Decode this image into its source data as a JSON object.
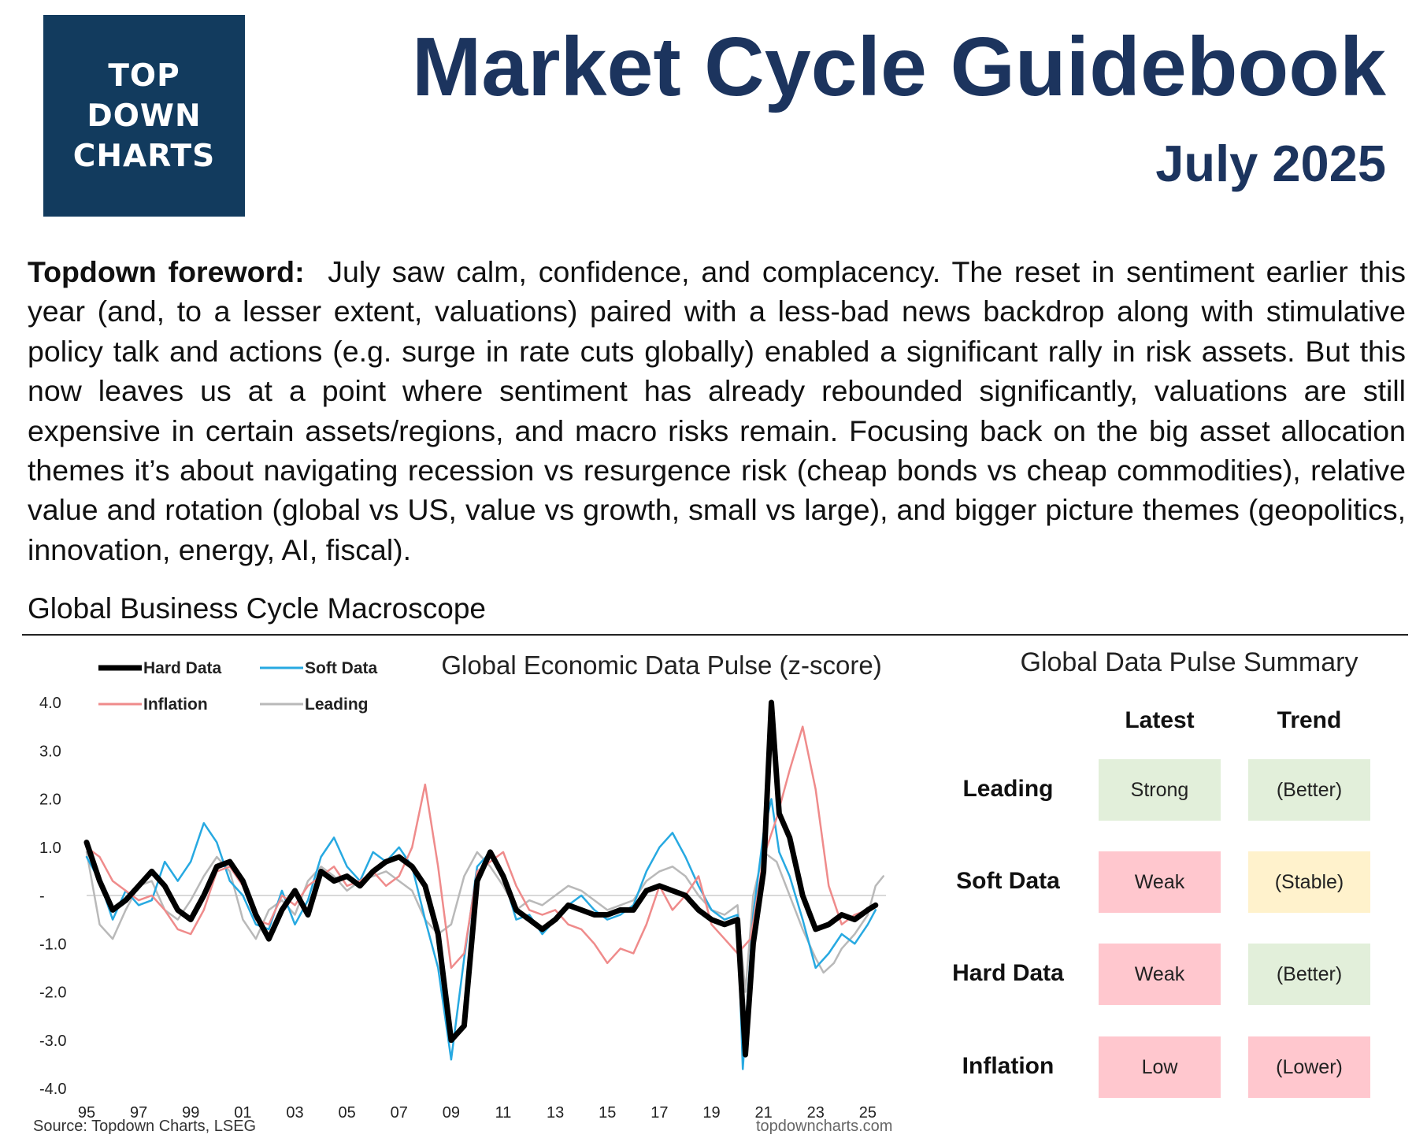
{
  "colors": {
    "navy": "#1c345e",
    "logo_bg": "#123b5e",
    "good": "#e2efda",
    "bad": "#ffc7ce",
    "neutral": "#fff2cc"
  },
  "header": {
    "logo_lines": [
      "TOP",
      "DOWN",
      "CHARTS"
    ],
    "title": "Market Cycle Guidebook",
    "date": "July 2025"
  },
  "foreword": {
    "lead": "Topdown foreword:",
    "body": "July saw calm, confidence, and complacency.  The reset in sentiment earlier this year (and, to a lesser extent, valuations) paired with a less-bad news backdrop along with stimulative policy talk and actions (e.g. surge in rate cuts globally) enabled a significant rally in risk assets. But this now leaves us at a point where sentiment has already rebounded significantly, valuations are still expensive in certain assets/regions, and macro risks remain.  Focusing back on the big asset allocation themes it’s about navigating recession vs resurgence risk (cheap bonds vs cheap commodities), relative value and rotation (global vs US, value vs growth, small vs large), and bigger picture themes (geopolitics, innovation, energy, AI, fiscal)."
  },
  "section": {
    "title": "Global Business Cycle Macroscope"
  },
  "chart_data": {
    "type": "line",
    "title": "Global Economic Data Pulse (z-score)",
    "xlabel": "",
    "ylabel": "",
    "ylim": [
      -4,
      4
    ],
    "xlim": [
      1995,
      2025.7
    ],
    "yticks": [
      {
        "v": 4,
        "label": "4.0"
      },
      {
        "v": 3,
        "label": "3.0"
      },
      {
        "v": 2,
        "label": "2.0"
      },
      {
        "v": 1,
        "label": "1.0"
      },
      {
        "v": 0,
        "label": "-"
      },
      {
        "v": -1,
        "label": "-1.0"
      },
      {
        "v": -2,
        "label": "-2.0"
      },
      {
        "v": -3,
        "label": "-3.0"
      },
      {
        "v": -4,
        "label": "-4.0"
      }
    ],
    "xticks": [
      {
        "v": 1995,
        "label": "95"
      },
      {
        "v": 1997,
        "label": "97"
      },
      {
        "v": 1999,
        "label": "99"
      },
      {
        "v": 2001,
        "label": "01"
      },
      {
        "v": 2003,
        "label": "03"
      },
      {
        "v": 2005,
        "label": "05"
      },
      {
        "v": 2007,
        "label": "07"
      },
      {
        "v": 2009,
        "label": "09"
      },
      {
        "v": 2011,
        "label": "11"
      },
      {
        "v": 2013,
        "label": "13"
      },
      {
        "v": 2015,
        "label": "15"
      },
      {
        "v": 2017,
        "label": "17"
      },
      {
        "v": 2019,
        "label": "19"
      },
      {
        "v": 2021,
        "label": "21"
      },
      {
        "v": 2023,
        "label": "23"
      },
      {
        "v": 2025,
        "label": "25"
      }
    ],
    "legend_position": "top-left",
    "series": [
      {
        "name": "Leading",
        "color": "#b9b9b9",
        "points": [
          [
            1995,
            0.9
          ],
          [
            1995.5,
            -0.6
          ],
          [
            1996,
            -0.9
          ],
          [
            1996.5,
            -0.3
          ],
          [
            1997,
            0.2
          ],
          [
            1997.5,
            0.3
          ],
          [
            1998,
            -0.3
          ],
          [
            1998.5,
            -0.5
          ],
          [
            1999,
            -0.1
          ],
          [
            1999.5,
            0.4
          ],
          [
            2000,
            0.8
          ],
          [
            2000.5,
            0.5
          ],
          [
            2001,
            -0.5
          ],
          [
            2001.5,
            -0.9
          ],
          [
            2002,
            -0.3
          ],
          [
            2002.5,
            -0.1
          ],
          [
            2003,
            -0.4
          ],
          [
            2003.5,
            0.3
          ],
          [
            2004,
            0.6
          ],
          [
            2004.5,
            0.4
          ],
          [
            2005,
            0.1
          ],
          [
            2005.5,
            0.3
          ],
          [
            2006,
            0.4
          ],
          [
            2006.5,
            0.5
          ],
          [
            2007,
            0.3
          ],
          [
            2007.5,
            0.1
          ],
          [
            2008,
            -0.5
          ],
          [
            2008.5,
            -0.8
          ],
          [
            2009,
            -0.6
          ],
          [
            2009.5,
            0.4
          ],
          [
            2010,
            0.9
          ],
          [
            2010.5,
            0.6
          ],
          [
            2011,
            0.2
          ],
          [
            2011.5,
            -0.3
          ],
          [
            2012,
            -0.1
          ],
          [
            2012.5,
            -0.2
          ],
          [
            2013,
            0.0
          ],
          [
            2013.5,
            0.2
          ],
          [
            2014,
            0.1
          ],
          [
            2014.5,
            -0.1
          ],
          [
            2015,
            -0.3
          ],
          [
            2015.5,
            -0.2
          ],
          [
            2016,
            -0.1
          ],
          [
            2016.5,
            0.3
          ],
          [
            2017,
            0.5
          ],
          [
            2017.5,
            0.6
          ],
          [
            2018,
            0.4
          ],
          [
            2018.5,
            0.0
          ],
          [
            2019,
            -0.3
          ],
          [
            2019.5,
            -0.4
          ],
          [
            2020,
            -0.2
          ],
          [
            2020.3,
            -2.0
          ],
          [
            2020.6,
            0.0
          ],
          [
            2021,
            0.9
          ],
          [
            2021.5,
            0.7
          ],
          [
            2022,
            0.0
          ],
          [
            2022.5,
            -0.7
          ],
          [
            2023,
            -1.3
          ],
          [
            2023.3,
            -1.6
          ],
          [
            2023.7,
            -1.4
          ],
          [
            2024,
            -1.1
          ],
          [
            2024.5,
            -0.8
          ],
          [
            2025,
            -0.4
          ],
          [
            2025.3,
            0.2
          ],
          [
            2025.6,
            0.4
          ]
        ]
      },
      {
        "name": "Soft Data",
        "color": "#27a9e1",
        "points": [
          [
            1995,
            0.8
          ],
          [
            1995.5,
            0.3
          ],
          [
            1996,
            -0.5
          ],
          [
            1996.5,
            0.1
          ],
          [
            1997,
            -0.2
          ],
          [
            1997.5,
            -0.1
          ],
          [
            1998,
            0.7
          ],
          [
            1998.5,
            0.3
          ],
          [
            1999,
            0.7
          ],
          [
            1999.5,
            1.5
          ],
          [
            2000,
            1.1
          ],
          [
            2000.5,
            0.3
          ],
          [
            2001,
            0.0
          ],
          [
            2001.5,
            -0.6
          ],
          [
            2002,
            -0.7
          ],
          [
            2002.5,
            0.1
          ],
          [
            2003,
            -0.6
          ],
          [
            2003.5,
            -0.1
          ],
          [
            2004,
            0.8
          ],
          [
            2004.5,
            1.2
          ],
          [
            2005,
            0.6
          ],
          [
            2005.5,
            0.3
          ],
          [
            2006,
            0.9
          ],
          [
            2006.5,
            0.7
          ],
          [
            2007,
            1.0
          ],
          [
            2007.5,
            0.6
          ],
          [
            2008,
            -0.5
          ],
          [
            2008.5,
            -1.5
          ],
          [
            2009,
            -3.4
          ],
          [
            2009.5,
            -1.3
          ],
          [
            2010,
            0.6
          ],
          [
            2010.5,
            0.9
          ],
          [
            2011,
            0.4
          ],
          [
            2011.5,
            -0.5
          ],
          [
            2012,
            -0.4
          ],
          [
            2012.5,
            -0.8
          ],
          [
            2013,
            -0.5
          ],
          [
            2013.5,
            -0.2
          ],
          [
            2014,
            0.0
          ],
          [
            2014.5,
            -0.3
          ],
          [
            2015,
            -0.5
          ],
          [
            2015.5,
            -0.4
          ],
          [
            2016,
            -0.2
          ],
          [
            2016.5,
            0.5
          ],
          [
            2017,
            1.0
          ],
          [
            2017.5,
            1.3
          ],
          [
            2018,
            0.8
          ],
          [
            2018.5,
            0.2
          ],
          [
            2019,
            -0.3
          ],
          [
            2019.5,
            -0.5
          ],
          [
            2020,
            -0.4
          ],
          [
            2020.2,
            -3.6
          ],
          [
            2020.6,
            -0.4
          ],
          [
            2021,
            1.3
          ],
          [
            2021.3,
            2.0
          ],
          [
            2021.6,
            0.9
          ],
          [
            2022,
            0.4
          ],
          [
            2022.5,
            -0.5
          ],
          [
            2023,
            -1.5
          ],
          [
            2023.5,
            -1.2
          ],
          [
            2024,
            -0.8
          ],
          [
            2024.5,
            -1.0
          ],
          [
            2025,
            -0.6
          ],
          [
            2025.3,
            -0.3
          ]
        ]
      },
      {
        "name": "Inflation",
        "color": "#ef8b8b",
        "points": [
          [
            1995,
            1.0
          ],
          [
            1995.5,
            0.8
          ],
          [
            1996,
            0.3
          ],
          [
            1996.5,
            0.1
          ],
          [
            1997,
            -0.1
          ],
          [
            1997.5,
            0.0
          ],
          [
            1998,
            -0.3
          ],
          [
            1998.5,
            -0.7
          ],
          [
            1999,
            -0.8
          ],
          [
            1999.5,
            -0.3
          ],
          [
            2000,
            0.5
          ],
          [
            2000.5,
            0.6
          ],
          [
            2001,
            0.2
          ],
          [
            2001.5,
            -0.5
          ],
          [
            2002,
            -0.6
          ],
          [
            2002.5,
            0.0
          ],
          [
            2003,
            -0.2
          ],
          [
            2003.5,
            0.2
          ],
          [
            2004,
            0.4
          ],
          [
            2004.5,
            0.6
          ],
          [
            2005,
            0.2
          ],
          [
            2005.5,
            0.3
          ],
          [
            2006,
            0.5
          ],
          [
            2006.5,
            0.2
          ],
          [
            2007,
            0.4
          ],
          [
            2007.5,
            1.0
          ],
          [
            2008,
            2.3
          ],
          [
            2008.5,
            0.6
          ],
          [
            2009,
            -1.5
          ],
          [
            2009.5,
            -1.2
          ],
          [
            2010,
            0.5
          ],
          [
            2010.5,
            0.7
          ],
          [
            2011,
            0.9
          ],
          [
            2011.5,
            0.2
          ],
          [
            2012,
            -0.3
          ],
          [
            2012.5,
            -0.4
          ],
          [
            2013,
            -0.3
          ],
          [
            2013.5,
            -0.6
          ],
          [
            2014,
            -0.7
          ],
          [
            2014.5,
            -1.0
          ],
          [
            2015,
            -1.4
          ],
          [
            2015.5,
            -1.1
          ],
          [
            2016,
            -1.2
          ],
          [
            2016.5,
            -0.6
          ],
          [
            2017,
            0.2
          ],
          [
            2017.5,
            -0.3
          ],
          [
            2018,
            0.0
          ],
          [
            2018.5,
            0.4
          ],
          [
            2019,
            -0.6
          ],
          [
            2019.5,
            -0.9
          ],
          [
            2020,
            -1.2
          ],
          [
            2020.5,
            -0.9
          ],
          [
            2021,
            0.8
          ],
          [
            2021.5,
            1.6
          ],
          [
            2022,
            2.6
          ],
          [
            2022.5,
            3.5
          ],
          [
            2023,
            2.2
          ],
          [
            2023.5,
            0.2
          ],
          [
            2024,
            -0.6
          ],
          [
            2024.5,
            -0.4
          ],
          [
            2025,
            -0.3
          ],
          [
            2025.3,
            -0.2
          ]
        ]
      },
      {
        "name": "Hard Data",
        "color": "#000000",
        "points": [
          [
            1995,
            1.1
          ],
          [
            1995.5,
            0.3
          ],
          [
            1996,
            -0.3
          ],
          [
            1996.5,
            -0.1
          ],
          [
            1997,
            0.2
          ],
          [
            1997.5,
            0.5
          ],
          [
            1998,
            0.2
          ],
          [
            1998.5,
            -0.3
          ],
          [
            1999,
            -0.5
          ],
          [
            1999.5,
            0.0
          ],
          [
            2000,
            0.6
          ],
          [
            2000.5,
            0.7
          ],
          [
            2001,
            0.3
          ],
          [
            2001.5,
            -0.4
          ],
          [
            2002,
            -0.9
          ],
          [
            2002.5,
            -0.3
          ],
          [
            2003,
            0.1
          ],
          [
            2003.5,
            -0.4
          ],
          [
            2004,
            0.5
          ],
          [
            2004.5,
            0.3
          ],
          [
            2005,
            0.4
          ],
          [
            2005.5,
            0.2
          ],
          [
            2006,
            0.5
          ],
          [
            2006.5,
            0.7
          ],
          [
            2007,
            0.8
          ],
          [
            2007.5,
            0.6
          ],
          [
            2008,
            0.2
          ],
          [
            2008.5,
            -0.8
          ],
          [
            2009,
            -3.0
          ],
          [
            2009.5,
            -2.7
          ],
          [
            2010,
            0.3
          ],
          [
            2010.5,
            0.9
          ],
          [
            2011,
            0.4
          ],
          [
            2011.5,
            -0.3
          ],
          [
            2012,
            -0.5
          ],
          [
            2012.5,
            -0.7
          ],
          [
            2013,
            -0.5
          ],
          [
            2013.5,
            -0.2
          ],
          [
            2014,
            -0.3
          ],
          [
            2014.5,
            -0.4
          ],
          [
            2015,
            -0.4
          ],
          [
            2015.5,
            -0.3
          ],
          [
            2016,
            -0.3
          ],
          [
            2016.5,
            0.1
          ],
          [
            2017,
            0.2
          ],
          [
            2017.5,
            0.1
          ],
          [
            2018,
            0.0
          ],
          [
            2018.5,
            -0.3
          ],
          [
            2019,
            -0.5
          ],
          [
            2019.5,
            -0.6
          ],
          [
            2020,
            -0.5
          ],
          [
            2020.3,
            -3.3
          ],
          [
            2020.6,
            -1.0
          ],
          [
            2021,
            0.5
          ],
          [
            2021.3,
            4.0
          ],
          [
            2021.6,
            1.7
          ],
          [
            2022,
            1.2
          ],
          [
            2022.5,
            0.0
          ],
          [
            2023,
            -0.7
          ],
          [
            2023.5,
            -0.6
          ],
          [
            2024,
            -0.4
          ],
          [
            2024.5,
            -0.5
          ],
          [
            2025,
            -0.3
          ],
          [
            2025.3,
            -0.2
          ]
        ]
      }
    ],
    "legend": [
      {
        "name": "Hard Data",
        "color": "#000000"
      },
      {
        "name": "Soft Data",
        "color": "#27a9e1"
      },
      {
        "name": "Inflation",
        "color": "#ef8b8b"
      },
      {
        "name": "Leading",
        "color": "#b9b9b9"
      }
    ]
  },
  "summary": {
    "title": "Global Data Pulse Summary",
    "columns": [
      "Latest",
      "Trend"
    ],
    "rows": [
      {
        "label": "Leading",
        "latest": "Strong",
        "trend": "(Better)",
        "latest_color": "#e2efda",
        "trend_color": "#e2efda"
      },
      {
        "label": "Soft Data",
        "latest": "Weak",
        "trend": "(Stable)",
        "latest_color": "#ffc7ce",
        "trend_color": "#fff2cc"
      },
      {
        "label": "Hard Data",
        "latest": "Weak",
        "trend": "(Better)",
        "latest_color": "#ffc7ce",
        "trend_color": "#e2efda"
      },
      {
        "label": "Inflation",
        "latest": "Low",
        "trend": "(Lower)",
        "latest_color": "#ffc7ce",
        "trend_color": "#ffc7ce"
      }
    ]
  },
  "footer": {
    "source": "Source: Topdown Charts, LSEG",
    "site": "topdowncharts.com"
  }
}
